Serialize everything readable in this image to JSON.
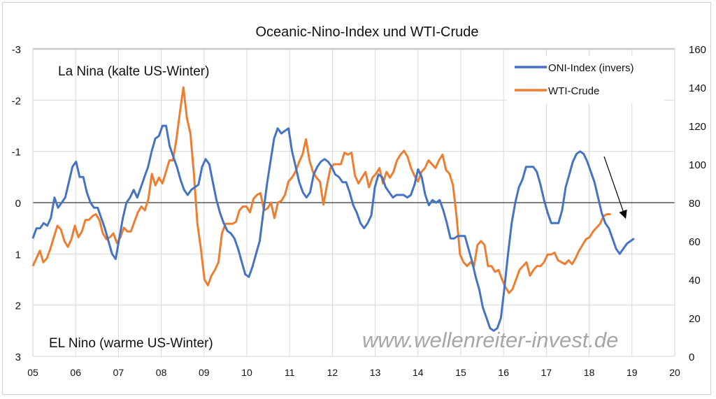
{
  "chart_data": {
    "type": "line",
    "title": "Oceanic-Nino-Index und WTI-Crude",
    "annotations": [
      "La Nina (kalte US-Winter)",
      "EL Nino (warme US-Winter)"
    ],
    "watermark": "www.wellenreiter-invest.de",
    "x_ticks": [
      "05",
      "06",
      "07",
      "08",
      "09",
      "10",
      "11",
      "12",
      "13",
      "14",
      "15",
      "16",
      "17",
      "18",
      "19",
      "20"
    ],
    "xlim": [
      2005,
      2020
    ],
    "y_left": {
      "ticks": [
        "-3",
        "-2",
        "-1",
        "0",
        "1",
        "2",
        "3"
      ],
      "range": [
        -3,
        3
      ],
      "inverted": true
    },
    "y_right": {
      "ticks": [
        "160",
        "140",
        "120",
        "100",
        "80",
        "60",
        "40",
        "20",
        "0"
      ],
      "range": [
        0,
        160
      ]
    },
    "grid": true,
    "legend_position": "top-right",
    "arrow_annotation": {
      "from": [
        2018.35,
        -0.9
      ],
      "to": [
        2018.85,
        0.3
      ]
    },
    "series": [
      {
        "name": "ONI-Index (invers)",
        "axis": "left",
        "color": "#4472C4",
        "x_start": 2005.0,
        "x_end": 2019.05,
        "values": [
          0.7,
          0.5,
          0.5,
          0.4,
          0.45,
          0.3,
          -0.1,
          0.1,
          0.0,
          -0.1,
          -0.4,
          -0.7,
          -0.8,
          -0.5,
          -0.5,
          -0.2,
          0,
          0.1,
          0.1,
          0.3,
          0.5,
          0.75,
          1.0,
          1.1,
          0.7,
          0.3,
          0,
          -0.1,
          -0.25,
          -0.1,
          -0.3,
          -0.5,
          -0.7,
          -1.0,
          -1.25,
          -1.3,
          -1.5,
          -1.5,
          -1.1,
          -0.9,
          -0.7,
          -0.45,
          -0.25,
          -0.15,
          -0.25,
          -0.3,
          -0.35,
          -0.7,
          -0.85,
          -0.75,
          -0.4,
          -0.05,
          0.2,
          0.4,
          0.55,
          0.6,
          0.7,
          0.9,
          1.15,
          1.4,
          1.45,
          1.25,
          1.0,
          0.75,
          0.2,
          -0.35,
          -0.8,
          -1.25,
          -1.45,
          -1.35,
          -1.4,
          -1.45,
          -1.0,
          -0.7,
          -0.4,
          -0.2,
          -0.1,
          -0.2,
          -0.55,
          -0.7,
          -0.8,
          -0.85,
          -0.8,
          -0.7,
          -0.55,
          -0.5,
          -0.4,
          -0.4,
          -0.2,
          0.05,
          0.2,
          0.4,
          0.5,
          0.4,
          0.25,
          -0.3,
          -0.55,
          -0.5,
          -0.3,
          -0.2,
          -0.1,
          -0.15,
          -0.15,
          -0.15,
          -0.1,
          -0.15,
          -0.35,
          -0.65,
          -0.5,
          -0.15,
          0.05,
          -0.05,
          0,
          -0.05,
          0.15,
          0.4,
          0.7,
          0.7,
          0.65,
          0.65,
          0.65,
          0.9,
          1.15,
          1.45,
          1.7,
          2.05,
          2.25,
          2.45,
          2.5,
          2.45,
          2.25,
          1.65,
          1.0,
          0.4,
          0,
          -0.3,
          -0.45,
          -0.7,
          -0.7,
          -0.7,
          -0.6,
          -0.35,
          -0.05,
          0.2,
          0.4,
          0.4,
          0.4,
          0.15,
          -0.3,
          -0.55,
          -0.8,
          -0.95,
          -1.0,
          -0.95,
          -0.8,
          -0.6,
          -0.4,
          -0.1,
          0.2,
          0.4,
          0.5,
          0.7,
          0.9,
          1.0,
          0.9,
          0.8,
          0.75,
          0.7
        ]
      },
      {
        "name": "WTI-Crude",
        "axis": "right",
        "color": "#ED7D31",
        "x_start": 2005.0,
        "x_end": 2018.5,
        "values": [
          47,
          51,
          55,
          49,
          51,
          56,
          62,
          68,
          66,
          60,
          57,
          61,
          68,
          62,
          65,
          71,
          71,
          73,
          74,
          71,
          64,
          61,
          62,
          64,
          59,
          62,
          67,
          65,
          65,
          70,
          75,
          78,
          76,
          82,
          95,
          89,
          93,
          90,
          96,
          102,
          102,
          113,
          127,
          140,
          124,
          116,
          95,
          69,
          56,
          40,
          37,
          42,
          45,
          49,
          64,
          69,
          69,
          69,
          70,
          76,
          78,
          78,
          75,
          82,
          84,
          85,
          76,
          77,
          80,
          72,
          80,
          81,
          84,
          91,
          93,
          96,
          101,
          105,
          113,
          102,
          96,
          93,
          91,
          79,
          89,
          98,
          100,
          100,
          100,
          106,
          105,
          106,
          94,
          90,
          93,
          96,
          88,
          93,
          95,
          98,
          90,
          96,
          93,
          96,
          102,
          105,
          107,
          104,
          98,
          94,
          91,
          96,
          98,
          102,
          100,
          98,
          102,
          105,
          97,
          95,
          89,
          73,
          53,
          49,
          47,
          49,
          47,
          58,
          60,
          58,
          47,
          47,
          44,
          45,
          40,
          36,
          33,
          35,
          40,
          45,
          47,
          49,
          42,
          45,
          47,
          47,
          49,
          53,
          53,
          54,
          50,
          49,
          48,
          50,
          48,
          51,
          55,
          58,
          61,
          62,
          65,
          67,
          69,
          73,
          74,
          74
        ]
      }
    ]
  }
}
